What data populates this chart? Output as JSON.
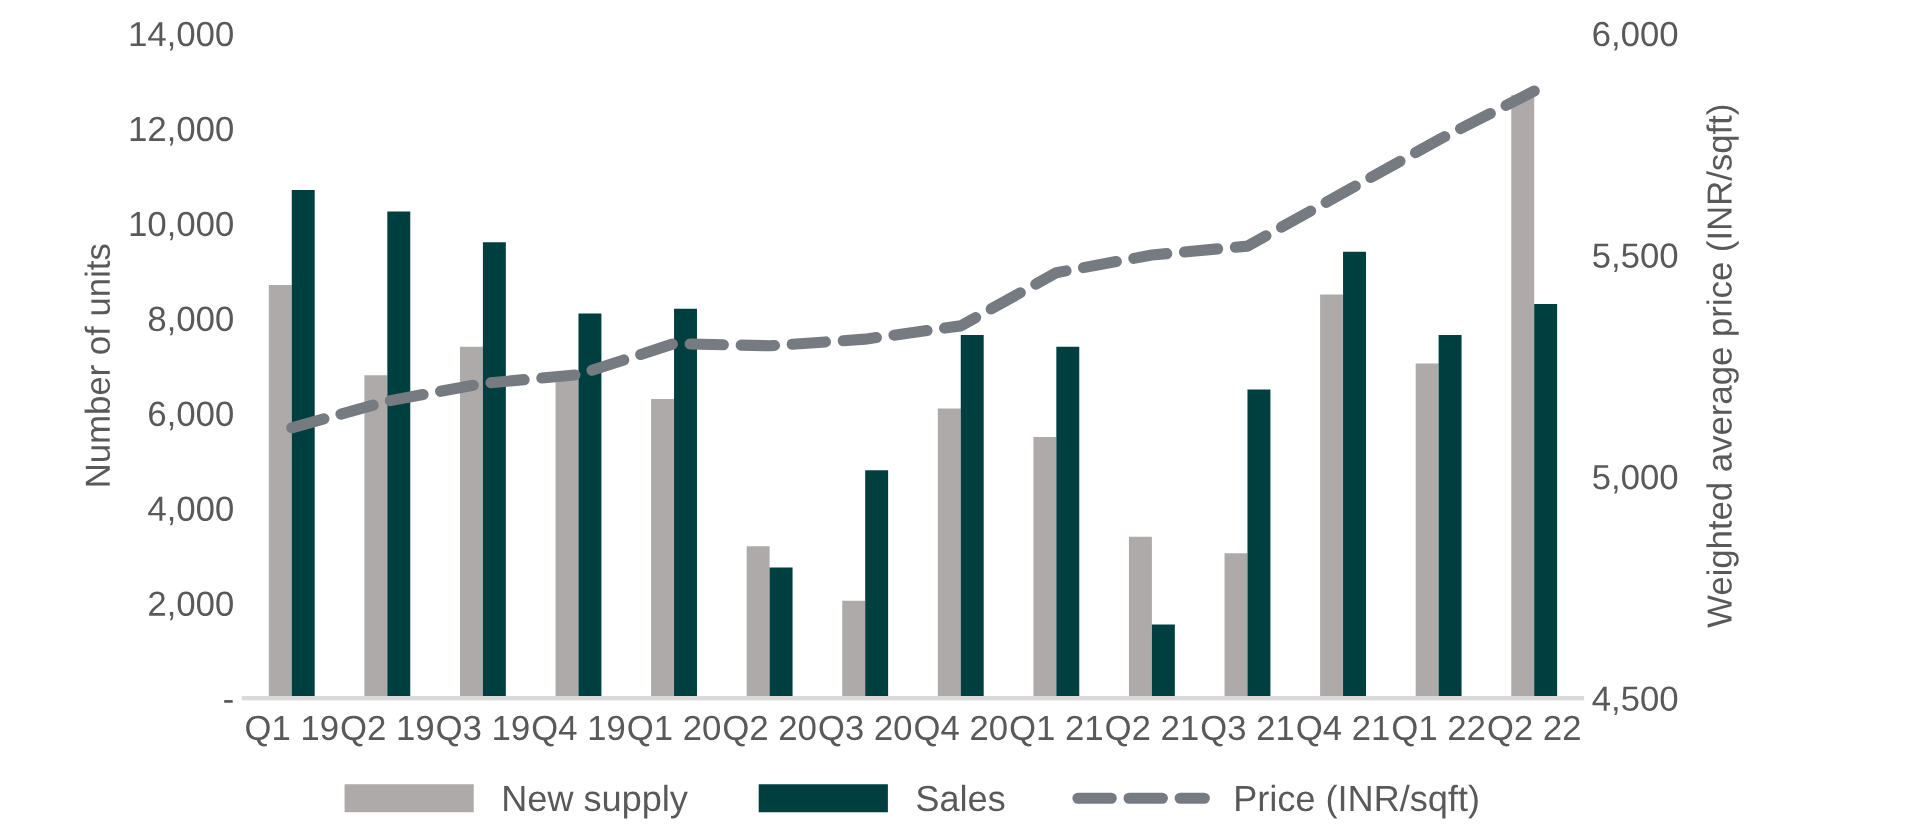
{
  "chart_data": {
    "type": "bar",
    "ylabel": "Number of units",
    "y2label": "Weighted average price (INR/sqft)",
    "categories": [
      "Q1 19",
      "Q2 19",
      "Q3 19",
      "Q4 19",
      "Q1 20",
      "Q2 20",
      "Q3 20",
      "Q4 20",
      "Q1 21",
      "Q2 21",
      "Q3 21",
      "Q4 21",
      "Q1 22",
      "Q2 22"
    ],
    "series": [
      {
        "name": "New supply",
        "color": "#aeaaaa",
        "values": [
          8700,
          6800,
          7400,
          6800,
          6300,
          3200,
          2050,
          6100,
          5500,
          3400,
          3050,
          8500,
          7050,
          12700
        ]
      },
      {
        "name": "Sales",
        "color": "#003f3f",
        "values": [
          10700,
          10250,
          9600,
          8100,
          8200,
          2750,
          4800,
          7650,
          7400,
          1550,
          6500,
          9400,
          7650,
          8300
        ]
      },
      {
        "name": "Price (INR/sqft)",
        "type": "line",
        "axis": "y2",
        "color": "#767b82",
        "line_style": "dashed",
        "values": [
          5110,
          5170,
          5210,
          5230,
          5300,
          5295,
          5310,
          5340,
          5460,
          5500,
          5520,
          5640,
          5760,
          5870
        ]
      }
    ],
    "ylim": [
      0,
      14000
    ],
    "yticks": [
      {
        "value": 0,
        "label": "-"
      },
      {
        "value": 2000,
        "label": "2,000"
      },
      {
        "value": 4000,
        "label": "4,000"
      },
      {
        "value": 6000,
        "label": "6,000"
      },
      {
        "value": 8000,
        "label": "8,000"
      },
      {
        "value": 10000,
        "label": "10,000"
      },
      {
        "value": 12000,
        "label": "12,000"
      },
      {
        "value": 14000,
        "label": "14,000"
      }
    ],
    "y2lim": [
      4500,
      6000
    ],
    "y2ticks": [
      {
        "value": 4500,
        "label": "4,500"
      },
      {
        "value": 5000,
        "label": "5,000"
      },
      {
        "value": 5500,
        "label": "5,500"
      },
      {
        "value": 6000,
        "label": "6,000"
      }
    ],
    "grid": false,
    "legend": "bottom",
    "marker": "none"
  }
}
